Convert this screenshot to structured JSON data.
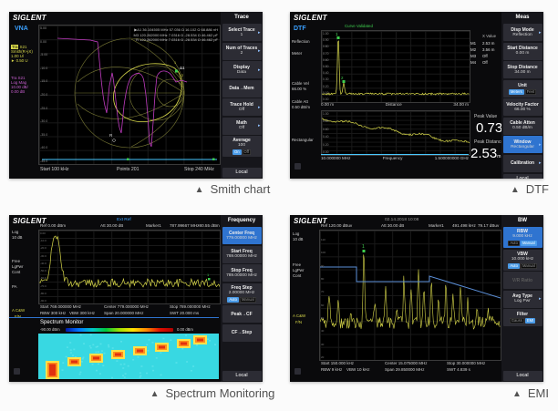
{
  "colors": {
    "accent_blue": "#2f74d0",
    "trace_yellow": "#d8d84a",
    "trace_magenta": "#c23cc2",
    "marker_green": "#3ecf4e",
    "waterfall_cyan": "#38d8e2"
  },
  "captions": {
    "glyph": "▲",
    "smith": "Smith chart",
    "dtf": "DTF",
    "spectrum": "Spectrum Monitoring",
    "emi": "EMI"
  },
  "panels": {
    "smith": {
      "logo": "SIGLENT",
      "mode": "VNA",
      "t1_tag": "Tra",
      "t1_name": " S21",
      "t1_lines": [
        "Smith(R+jX)",
        "1.00 U/",
        "► 0.50 U"
      ],
      "t2_lines": [
        "Tra S21",
        "Log Mag",
        "10.00 dB/",
        "0.00 dB"
      ],
      "yticks": [
        "5.00",
        "0.00",
        "-5.00",
        "-10.0",
        "-15.0",
        "-20.0",
        "-25.0",
        "-30.0",
        "-35.0",
        "-40.0",
        "-45.0"
      ],
      "marker_lines": [
        "▶Δ1  36.104505 MHz    57.036 Ω   16.102 Ω   68.886 nH",
        "M3  120.262000 MHz   7.0316 Ω   -28.534 Ω   46.462 pF",
        "R   120.262000 MHz   7.0316 Ω   -28.534 Ω   46.462 pF"
      ],
      "chart_labels": {
        "d1": "Δ1",
        "m1": "1",
        "m2": "2",
        "r": "R"
      },
      "footer": {
        "start": "Start 100 kHz",
        "points": "Points  201",
        "stop": "Stop 240 MHz"
      },
      "menu": {
        "header": "Trace",
        "local": "Local",
        "items": [
          {
            "name": "select-trace",
            "label": "Select Trace",
            "value": "1",
            "arrow": true
          },
          {
            "name": "num-of-traces",
            "label": "Num of Traces",
            "value": "2",
            "arrow": true
          },
          {
            "name": "display",
            "label": "Display",
            "value": "Data",
            "arrow": true
          },
          {
            "name": "data-to-mem",
            "label": "Data→Mem"
          },
          {
            "name": "trace-hold",
            "label": "Trace Hold",
            "value": "Off",
            "arrow": true
          },
          {
            "name": "math",
            "label": "Math",
            "value": "Off",
            "arrow": true
          },
          {
            "name": "average",
            "label": "Average",
            "value": "100",
            "toggle": [
              {
                "t": "On",
                "on": true
              },
              {
                "t": "Off",
                "on": false
              }
            ]
          }
        ]
      }
    },
    "dtf": {
      "logo": "SIGLENT",
      "mode": "DTF",
      "green_note": "Curve Validated",
      "sidebar": {
        "s1": "Reflection",
        "s2": "Meter",
        "s3a": "Cable Vel",
        "s3b": "66.00 %",
        "s4a": "Cable Att",
        "s4b": "0.50 dB/m",
        "s5": "Rectangular"
      },
      "chart1": {
        "yticks": [
          "1.00",
          "0.90",
          "0.80",
          "0.70",
          "0.60",
          "0.50",
          "0.40",
          "0.30",
          "0.20",
          "0.10",
          "0.00"
        ],
        "xleft": "0.00 m",
        "xmid": "Distance",
        "xright": "34.00 m",
        "m1": "1",
        "m2": "2"
      },
      "chart2": {
        "yticks": [
          "1.00",
          "0.80",
          "0.60",
          "0.40",
          "0.20",
          "0.00"
        ],
        "xleft": "10.000000 MHz",
        "xmid": "Frequency",
        "xright": "1.500000000 GHz"
      },
      "markers": {
        "headers": [
          "X Value",
          "Y Value"
        ],
        "rows": [
          [
            "M1",
            "2.53 m",
            "0.73"
          ],
          [
            "M2",
            "3.56 m",
            "0.06"
          ],
          [
            "M3",
            "Off",
            ""
          ],
          [
            "M4",
            "Off",
            ""
          ]
        ]
      },
      "peaks": {
        "v_label": "Peak Value",
        "v": "0.73",
        "d_label": "Peak Distance",
        "d": "2.53",
        "d_unit": "m"
      },
      "menu": {
        "header": "Meas",
        "local": "Local",
        "items": [
          {
            "name": "disp-mode",
            "label": "Disp Mode",
            "value": "Reflection",
            "arrow": true
          },
          {
            "name": "start-distance",
            "label": "Start Distance",
            "value": "0.00 m"
          },
          {
            "name": "stop-distance",
            "label": "Stop Distance",
            "value": "34.00 m"
          },
          {
            "name": "unit",
            "label": "Unit",
            "toggle": [
              {
                "t": "Meters",
                "on": true
              },
              {
                "t": "Feet",
                "on": false
              }
            ]
          },
          {
            "name": "velocity-factor",
            "label": "Velocity Factor",
            "value": "66.00 %"
          },
          {
            "name": "cable-atten",
            "label": "Cable Atten",
            "value": "0.50 dB/m"
          },
          {
            "name": "window",
            "label": "Window",
            "value": "Rectangular",
            "hl": true,
            "arrow": true
          },
          {
            "name": "calibration",
            "label": "Calibration",
            "arrow": true
          }
        ]
      }
    },
    "spectrum": {
      "logo": "SIGLENT",
      "ext_ref": "Ext Ref",
      "topbar": {
        "ref": "Ref 0.00 dBm",
        "att": "Att 30.00 dB",
        "mkr": "Marker1",
        "mkr_x": "787.99667 MHz",
        "mkr_y": "-80.55 dBm"
      },
      "sidebar": {
        "s1": "Log",
        "s2": "10 dB",
        "s3": "Free",
        "s4": "LgPwr",
        "s5": "Cont",
        "s6": "PA",
        "s7": "A C&W",
        "s8": "F/N"
      },
      "yticks": [
        "0.00",
        "-10.0",
        "-20.0",
        "-30.0",
        "-40.0",
        "-50.0",
        "-60.0",
        "-70.0",
        "-80.0",
        "-90.0"
      ],
      "mkr_label": "1",
      "ann": {
        "start": "Start 769.000000 MHz",
        "center": "Center 779.000000 MHz",
        "stop": "Stop 789.000000 MHz",
        "rbw": "RBW 300 kHz",
        "vbw": "VBW 300 kHz",
        "span": "Span 20.000000 MHz",
        "swt": "SWT 20.000 ms"
      },
      "monitor": {
        "title": "Spectrum Monitor",
        "lo": "-90.00 dBm",
        "hi": "0.00 dBm"
      },
      "menu": {
        "header": "Frequency",
        "local": "Local",
        "items": [
          {
            "name": "center-freq",
            "label": "Center Freq",
            "value": "779.00000 MHz",
            "hl": true
          },
          {
            "name": "start-freq",
            "label": "Start Freq",
            "value": "769.00000 MHz"
          },
          {
            "name": "stop-freq",
            "label": "Stop Freq",
            "value": "789.00000 MHz"
          },
          {
            "name": "freq-step",
            "label": "Freq Step",
            "value": "2.00000 MHz",
            "toggle": [
              {
                "t": "Auto",
                "on": true
              },
              {
                "t": "Manual",
                "on": false
              }
            ]
          },
          {
            "name": "peak-to-cf",
            "label": "Peak→CF"
          },
          {
            "name": "cf-to-step",
            "label": "CF→Step"
          }
        ]
      }
    },
    "emi": {
      "logo": "SIGLENT",
      "datetime": "02.14.2018 10:08",
      "topbar": {
        "ref": "Ref 120.00 dBuv",
        "att": "Att 30.00 dB",
        "mkr": "Marker1",
        "mkr_x": "491.498 kHz",
        "mkr_y": "79.17 dBuv"
      },
      "sidebar": {
        "s1": "Log",
        "s2": "10 dB",
        "s3": "Free",
        "s4": "LgPwr",
        "s5": "Cont",
        "s7": "A C&W",
        "s8": "F/N"
      },
      "yticks": [
        "110",
        "100",
        "90",
        "80",
        "70",
        "60",
        "50",
        "40",
        "30",
        "20"
      ],
      "mkr_label": "1",
      "ann": {
        "start": "Start 150.000 kHz",
        "center": "Center 15.075000 MHz",
        "stop": "Stop 30.000000 MHz",
        "rbw": "RBW 9 kHz",
        "vbw": "VBW 10 kHz",
        "span": "Span 29.850000 MHz",
        "swt": "SWT 4.839 s"
      },
      "menu": {
        "header": "BW",
        "local": "Local",
        "items": [
          {
            "name": "rbw",
            "label": "RBW",
            "value": "9.000 kHz",
            "hl": true,
            "toggle": [
              {
                "t": "Auto",
                "on": false
              },
              {
                "t": "Manual",
                "on": true
              }
            ]
          },
          {
            "name": "vbw",
            "label": "VBW",
            "value": "10.000 kHz",
            "toggle": [
              {
                "t": "Auto",
                "on": true
              },
              {
                "t": "Manual",
                "on": false
              }
            ]
          },
          {
            "name": "vr-ratio",
            "label": "V/R Ratio",
            "dim": true
          },
          {
            "name": "avg-type",
            "label": "Avg Type",
            "value": "Log Pwr",
            "arrow": true
          },
          {
            "name": "filter",
            "label": "Filter",
            "toggle": [
              {
                "t": "Gauss",
                "on": false
              },
              {
                "t": "EMI",
                "on": true
              }
            ]
          }
        ]
      }
    }
  }
}
